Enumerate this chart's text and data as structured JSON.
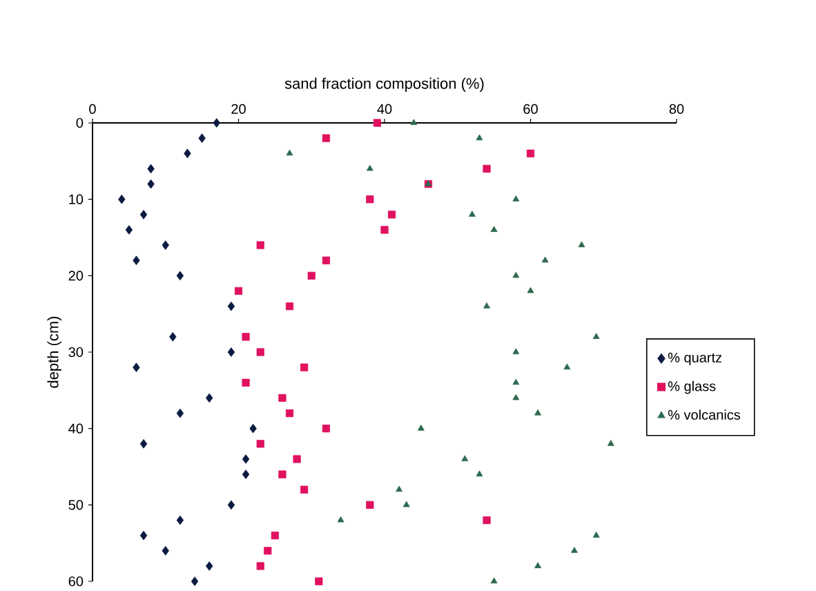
{
  "chart_data": {
    "type": "scatter",
    "xlabel": "sand fraction composition (%)",
    "ylabel": "depth (cm)",
    "xlim": [
      0,
      80
    ],
    "xticks": [
      0,
      20,
      40,
      60,
      80
    ],
    "ylim": [
      60,
      0
    ],
    "yticks": [
      0,
      10,
      20,
      30,
      40,
      50,
      60
    ],
    "grid": false,
    "legend": "right",
    "series": [
      {
        "name": "% quartz",
        "color": "#0b1a40",
        "marker": "diamond",
        "x": [
          17,
          15,
          13,
          8,
          8,
          4,
          7,
          5,
          10,
          6,
          12,
          19,
          11,
          19,
          6,
          16,
          12,
          22,
          7,
          21,
          21,
          19,
          12,
          7,
          10,
          16,
          14
        ],
        "values": [
          0,
          2,
          4,
          6,
          8,
          10,
          12,
          14,
          16,
          18,
          20,
          24,
          28,
          30,
          32,
          36,
          38,
          40,
          42,
          44,
          46,
          50,
          52,
          54,
          56,
          58,
          60
        ]
      },
      {
        "name": "% glass",
        "color": "#e0115f",
        "marker": "square",
        "x": [
          39,
          32,
          60,
          54,
          46,
          38,
          41,
          40,
          23,
          32,
          30,
          20,
          27,
          21,
          23,
          29,
          21,
          26,
          27,
          32,
          23,
          28,
          26,
          29,
          38,
          54,
          25,
          24,
          23,
          31
        ],
        "values": [
          0,
          2,
          4,
          6,
          8,
          10,
          12,
          14,
          16,
          18,
          20,
          22,
          24,
          28,
          30,
          32,
          34,
          36,
          38,
          40,
          42,
          44,
          46,
          48,
          50,
          52,
          54,
          56,
          58,
          60
        ]
      },
      {
        "name": "% volcanics",
        "color": "#2e6b4f",
        "marker": "triangle",
        "x": [
          44,
          53,
          27,
          38,
          46,
          58,
          52,
          55,
          67,
          62,
          58,
          60,
          54,
          69,
          58,
          65,
          58,
          58,
          61,
          45,
          71,
          51,
          53,
          42,
          43,
          34,
          69,
          66,
          61,
          55
        ],
        "values": [
          0,
          2,
          4,
          6,
          8,
          10,
          12,
          14,
          16,
          18,
          20,
          22,
          24,
          28,
          30,
          32,
          34,
          36,
          38,
          40,
          42,
          44,
          46,
          48,
          50,
          52,
          54,
          56,
          58,
          60
        ]
      }
    ]
  }
}
